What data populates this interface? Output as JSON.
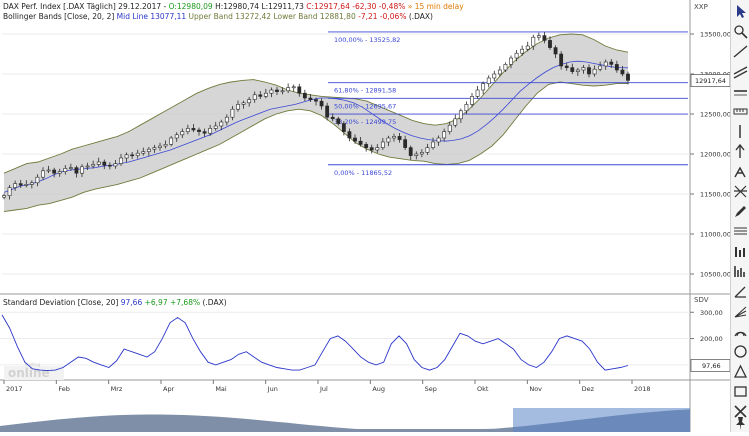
{
  "colors": {
    "candle_up": "#2a2a2a",
    "band_fill": "#c8c8c8",
    "band_line": "#6e7b3a",
    "mid_line": "#3b48d6",
    "fib_line": "#3b48d6",
    "sd_line": "#2b36c9",
    "header_green": "#1a9a1a",
    "header_red": "#d01818",
    "header_blue": "#2b36c9",
    "header_orange": "#e07a00"
  },
  "header": {
    "line1": {
      "name": "DAX Perf. Index [.DAX Täglich] 29.12.2017 - ",
      "open": "O:12980,09",
      "high": " H:12980,74",
      "low": " L:12911,73",
      "close": " C:12917,64",
      "change": " -62,30 -0,48%",
      "delay": " » 15 min delay"
    },
    "line2": {
      "name": "Bollinger Bands [Close, 20, 2] ",
      "mid": "Mid Line 13077,11",
      "upper": " Upper Band 13272,42",
      "lower": " Lower Band 12881,80",
      "change": " -7,21 -0,06%",
      "suffix": " (.DAX)"
    },
    "sd": {
      "name": "Standard Deviation [Close, 20] ",
      "value": "97,66",
      "change": " +6,97 +7,68%",
      "suffix": " (.DAX)"
    }
  },
  "axes": {
    "price_unit": "XXP",
    "sd_unit": "SDV",
    "price_ticks": [
      "13500,00",
      "13000,00",
      "12500,00",
      "12000,00",
      "11500,00",
      "11000,00",
      "10500,00"
    ],
    "price_tick_values": [
      13500,
      13000,
      12500,
      12000,
      11500,
      11000,
      10500
    ],
    "current_price_label": "12917,64",
    "sd_ticks": [
      "300,00",
      "200,00",
      "100,00"
    ],
    "sd_tick_values": [
      300,
      200,
      100
    ],
    "current_sd_label": "97,66",
    "months": [
      "2017",
      "Feb",
      "Mrz",
      "Apr",
      "Mai",
      "Jun",
      "Jul",
      "Aug",
      "Sep",
      "Okt",
      "Nov",
      "Dez",
      "2018"
    ]
  },
  "watermark": "online",
  "watermark_small": "Trading",
  "chart_data": [
    {
      "type": "candlestick",
      "title": "DAX Perf. Index [.DAX Täglich]",
      "ylim": [
        10300,
        13650
      ],
      "close_last": 12917.64,
      "fibonacci": [
        {
          "label": "100,00% - 13525,82",
          "value": 13525.82
        },
        {
          "label": "61,80% - 12891,58",
          "value": 12891.58
        },
        {
          "label": "50,00% - 12695,67",
          "value": 12695.67
        },
        {
          "label": "38,20% - 12499,75",
          "value": 12499.75
        },
        {
          "label": "0,00% - 11865,52",
          "value": 11865.52
        }
      ],
      "series": [
        {
          "name": "Close",
          "values": [
            11480,
            11580,
            11630,
            11610,
            11620,
            11640,
            11710,
            11790,
            11800,
            11760,
            11780,
            11820,
            11830,
            11760,
            11840,
            11850,
            11870,
            11900,
            11860,
            11850,
            11880,
            11950,
            11990,
            11980,
            12010,
            12030,
            12060,
            12080,
            12100,
            12120,
            12200,
            12240,
            12280,
            12320,
            12300,
            12280,
            12260,
            12320,
            12350,
            12400,
            12460,
            12560,
            12620,
            12640,
            12680,
            12740,
            12720,
            12760,
            12800,
            12780,
            12790,
            12830,
            12840,
            12760,
            12700,
            12680,
            12660,
            12600,
            12460,
            12440,
            12380,
            12280,
            12200,
            12160,
            12120,
            12080,
            12050,
            12080,
            12150,
            12200,
            12220,
            12180,
            12080,
            11980,
            12000,
            12020,
            12080,
            12150,
            12200,
            12280,
            12360,
            12440,
            12540,
            12620,
            12720,
            12800,
            12880,
            12950,
            13000,
            13050,
            13120,
            13200,
            13260,
            13310,
            13350,
            13460,
            13480,
            13420,
            13330,
            13250,
            13100,
            13080,
            13030,
            13050,
            13080,
            13000,
            13060,
            13100,
            13150,
            13120,
            13050,
            13000,
            12920
          ]
        },
        {
          "name": "Mid Line",
          "values": [
            11520,
            11560,
            11600,
            11620,
            11650,
            11690,
            11740,
            11780,
            11800,
            11810,
            11820,
            11830,
            11850,
            11860,
            11880,
            11900,
            11930,
            11960,
            11990,
            12020,
            12050,
            12090,
            12130,
            12170,
            12210,
            12250,
            12300,
            12350,
            12400,
            12440,
            12480,
            12520,
            12560,
            12580,
            12600,
            12620,
            12650,
            12680,
            12700,
            12700,
            12690,
            12670,
            12640,
            12590,
            12520,
            12450,
            12380,
            12320,
            12270,
            12230,
            12200,
            12180,
            12170,
            12160,
            12170,
            12190,
            12230,
            12290,
            12370,
            12460,
            12560,
            12670,
            12780,
            12870,
            12950,
            13020,
            13080,
            13120,
            13150,
            13160,
            13150,
            13130,
            13110,
            13090,
            13080,
            13077
          ]
        },
        {
          "name": "Upper Band",
          "values": [
            11760,
            11820,
            11880,
            11900,
            11950,
            12000,
            12060,
            12100,
            12140,
            12180,
            12220,
            12280,
            12360,
            12440,
            12520,
            12600,
            12680,
            12760,
            12820,
            12870,
            12900,
            12920,
            12930,
            12900,
            12860,
            12800,
            12760,
            12740,
            12720,
            12710,
            12700,
            12690,
            12660,
            12600,
            12540,
            12480,
            12420,
            12380,
            12360,
            12380,
            12440,
            12560,
            12700,
            12860,
            13020,
            13160,
            13280,
            13380,
            13450,
            13490,
            13500,
            13490,
            13430,
            13350,
            13300,
            13272
          ]
        },
        {
          "name": "Lower Band",
          "values": [
            11280,
            11300,
            11320,
            11360,
            11380,
            11420,
            11460,
            11520,
            11560,
            11590,
            11620,
            11660,
            11700,
            11760,
            11820,
            11880,
            11940,
            12000,
            12060,
            12120,
            12200,
            12280,
            12360,
            12440,
            12500,
            12540,
            12560,
            12540,
            12480,
            12380,
            12260,
            12140,
            12060,
            12000,
            11960,
            11940,
            11920,
            11910,
            11880,
            11870,
            11880,
            11920,
            12000,
            12100,
            12240,
            12420,
            12600,
            12760,
            12870,
            12900,
            12880,
            12860,
            12850,
            12860,
            12880,
            12881
          ]
        }
      ]
    },
    {
      "type": "line",
      "title": "Standard Deviation [Close, 20]",
      "ylim": [
        50,
        320
      ],
      "series": [
        {
          "name": "Standard Deviation",
          "values": [
            290,
            240,
            170,
            110,
            85,
            80,
            78,
            80,
            90,
            110,
            130,
            125,
            110,
            100,
            90,
            115,
            160,
            150,
            140,
            130,
            150,
            200,
            260,
            280,
            260,
            200,
            150,
            110,
            100,
            110,
            120,
            140,
            150,
            130,
            110,
            100,
            90,
            85,
            80,
            80,
            90,
            100,
            150,
            200,
            210,
            190,
            160,
            130,
            110,
            100,
            110,
            180,
            210,
            180,
            120,
            90,
            80,
            90,
            120,
            170,
            220,
            210,
            190,
            180,
            190,
            200,
            180,
            160,
            120,
            100,
            90,
            110,
            150,
            200,
            210,
            200,
            190,
            160,
            110,
            80,
            85,
            90,
            97.66
          ]
        }
      ]
    }
  ]
}
